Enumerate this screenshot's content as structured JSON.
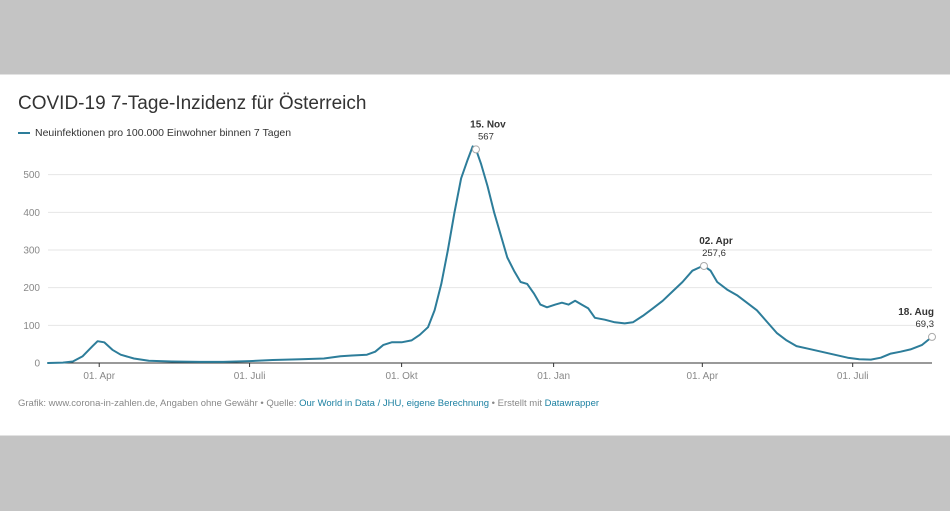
{
  "chart_data": {
    "type": "line",
    "title": "COVID-19 7-Tage-Inzidenz für Österreich",
    "legend_position": "top-left",
    "grid": true,
    "ylim": [
      0,
      600
    ],
    "y_ticks": [
      "0",
      "100",
      "200",
      "300",
      "400",
      "500"
    ],
    "y_tick_values": [
      0,
      100,
      200,
      300,
      400,
      500
    ],
    "xlim": [
      "2020-03-01",
      "2021-08-18"
    ],
    "x_ticks": [
      {
        "label": "01. Apr",
        "date": "2020-04-01"
      },
      {
        "label": "01. Juli",
        "date": "2020-07-01"
      },
      {
        "label": "01. Okt",
        "date": "2020-10-01"
      },
      {
        "label": "01. Jan",
        "date": "2021-01-01"
      },
      {
        "label": "01. Apr",
        "date": "2021-04-01"
      },
      {
        "label": "01. Juli",
        "date": "2021-07-01"
      }
    ],
    "series": [
      {
        "name": "Neuinfektionen pro 100.000 Einwohner binnen 7 Tagen",
        "color": "#2d7d9a",
        "points": [
          [
            "2020-03-01",
            0
          ],
          [
            "2020-03-10",
            1
          ],
          [
            "2020-03-16",
            4
          ],
          [
            "2020-03-22",
            18
          ],
          [
            "2020-03-28",
            45
          ],
          [
            "2020-03-31",
            58
          ],
          [
            "2020-04-04",
            55
          ],
          [
            "2020-04-09",
            35
          ],
          [
            "2020-04-14",
            22
          ],
          [
            "2020-04-22",
            12
          ],
          [
            "2020-05-01",
            6
          ],
          [
            "2020-05-15",
            4
          ],
          [
            "2020-06-01",
            3
          ],
          [
            "2020-06-15",
            3
          ],
          [
            "2020-07-01",
            5
          ],
          [
            "2020-07-15",
            8
          ],
          [
            "2020-08-01",
            10
          ],
          [
            "2020-08-15",
            12
          ],
          [
            "2020-08-25",
            18
          ],
          [
            "2020-09-01",
            20
          ],
          [
            "2020-09-10",
            22
          ],
          [
            "2020-09-15",
            30
          ],
          [
            "2020-09-20",
            48
          ],
          [
            "2020-09-25",
            55
          ],
          [
            "2020-10-01",
            55
          ],
          [
            "2020-10-07",
            60
          ],
          [
            "2020-10-12",
            75
          ],
          [
            "2020-10-17",
            95
          ],
          [
            "2020-10-21",
            140
          ],
          [
            "2020-10-25",
            210
          ],
          [
            "2020-10-29",
            300
          ],
          [
            "2020-11-02",
            400
          ],
          [
            "2020-11-06",
            490
          ],
          [
            "2020-11-10",
            540
          ],
          [
            "2020-11-13",
            575
          ],
          [
            "2020-11-15",
            567
          ],
          [
            "2020-11-18",
            530
          ],
          [
            "2020-11-22",
            470
          ],
          [
            "2020-11-26",
            400
          ],
          [
            "2020-11-30",
            340
          ],
          [
            "2020-12-04",
            280
          ],
          [
            "2020-12-08",
            245
          ],
          [
            "2020-12-12",
            215
          ],
          [
            "2020-12-16",
            210
          ],
          [
            "2020-12-20",
            185
          ],
          [
            "2020-12-24",
            155
          ],
          [
            "2020-12-28",
            148
          ],
          [
            "2021-01-02",
            155
          ],
          [
            "2021-01-06",
            160
          ],
          [
            "2021-01-10",
            155
          ],
          [
            "2021-01-14",
            165
          ],
          [
            "2021-01-18",
            155
          ],
          [
            "2021-01-22",
            145
          ],
          [
            "2021-01-26",
            120
          ],
          [
            "2021-02-01",
            115
          ],
          [
            "2021-02-07",
            108
          ],
          [
            "2021-02-13",
            105
          ],
          [
            "2021-02-18",
            108
          ],
          [
            "2021-02-24",
            125
          ],
          [
            "2021-03-02",
            145
          ],
          [
            "2021-03-08",
            165
          ],
          [
            "2021-03-14",
            190
          ],
          [
            "2021-03-20",
            215
          ],
          [
            "2021-03-26",
            245
          ],
          [
            "2021-03-31",
            255
          ],
          [
            "2021-04-02",
            257.6
          ],
          [
            "2021-04-06",
            245
          ],
          [
            "2021-04-10",
            215
          ],
          [
            "2021-04-16",
            195
          ],
          [
            "2021-04-22",
            180
          ],
          [
            "2021-04-28",
            160
          ],
          [
            "2021-05-04",
            140
          ],
          [
            "2021-05-10",
            110
          ],
          [
            "2021-05-16",
            80
          ],
          [
            "2021-05-22",
            60
          ],
          [
            "2021-05-28",
            45
          ],
          [
            "2021-06-04",
            38
          ],
          [
            "2021-06-12",
            30
          ],
          [
            "2021-06-20",
            22
          ],
          [
            "2021-06-28",
            14
          ],
          [
            "2021-07-05",
            10
          ],
          [
            "2021-07-12",
            9
          ],
          [
            "2021-07-18",
            14
          ],
          [
            "2021-07-24",
            25
          ],
          [
            "2021-07-30",
            30
          ],
          [
            "2021-08-05",
            36
          ],
          [
            "2021-08-12",
            48
          ],
          [
            "2021-08-18",
            69.3
          ]
        ]
      }
    ],
    "annotations": [
      {
        "date_label": "15. Nov",
        "value_label": "567",
        "x": "2020-11-15",
        "y": 567
      },
      {
        "date_label": "02. Apr",
        "value_label": "257,6",
        "x": "2021-04-02",
        "y": 257.6
      },
      {
        "date_label": "18. Aug",
        "value_label": "69,3",
        "x": "2021-08-18",
        "y": 69.3
      }
    ]
  },
  "footer": {
    "prefix": "Grafik: www.corona-in-zahlen.de, Angaben ohne Gewähr • Quelle: ",
    "source_link": "Our World in Data / JHU, eigene Berechnung",
    "middle": " • Erstellt mit ",
    "tool_link": "Datawrapper",
    "link_color": "#1d81a2"
  }
}
